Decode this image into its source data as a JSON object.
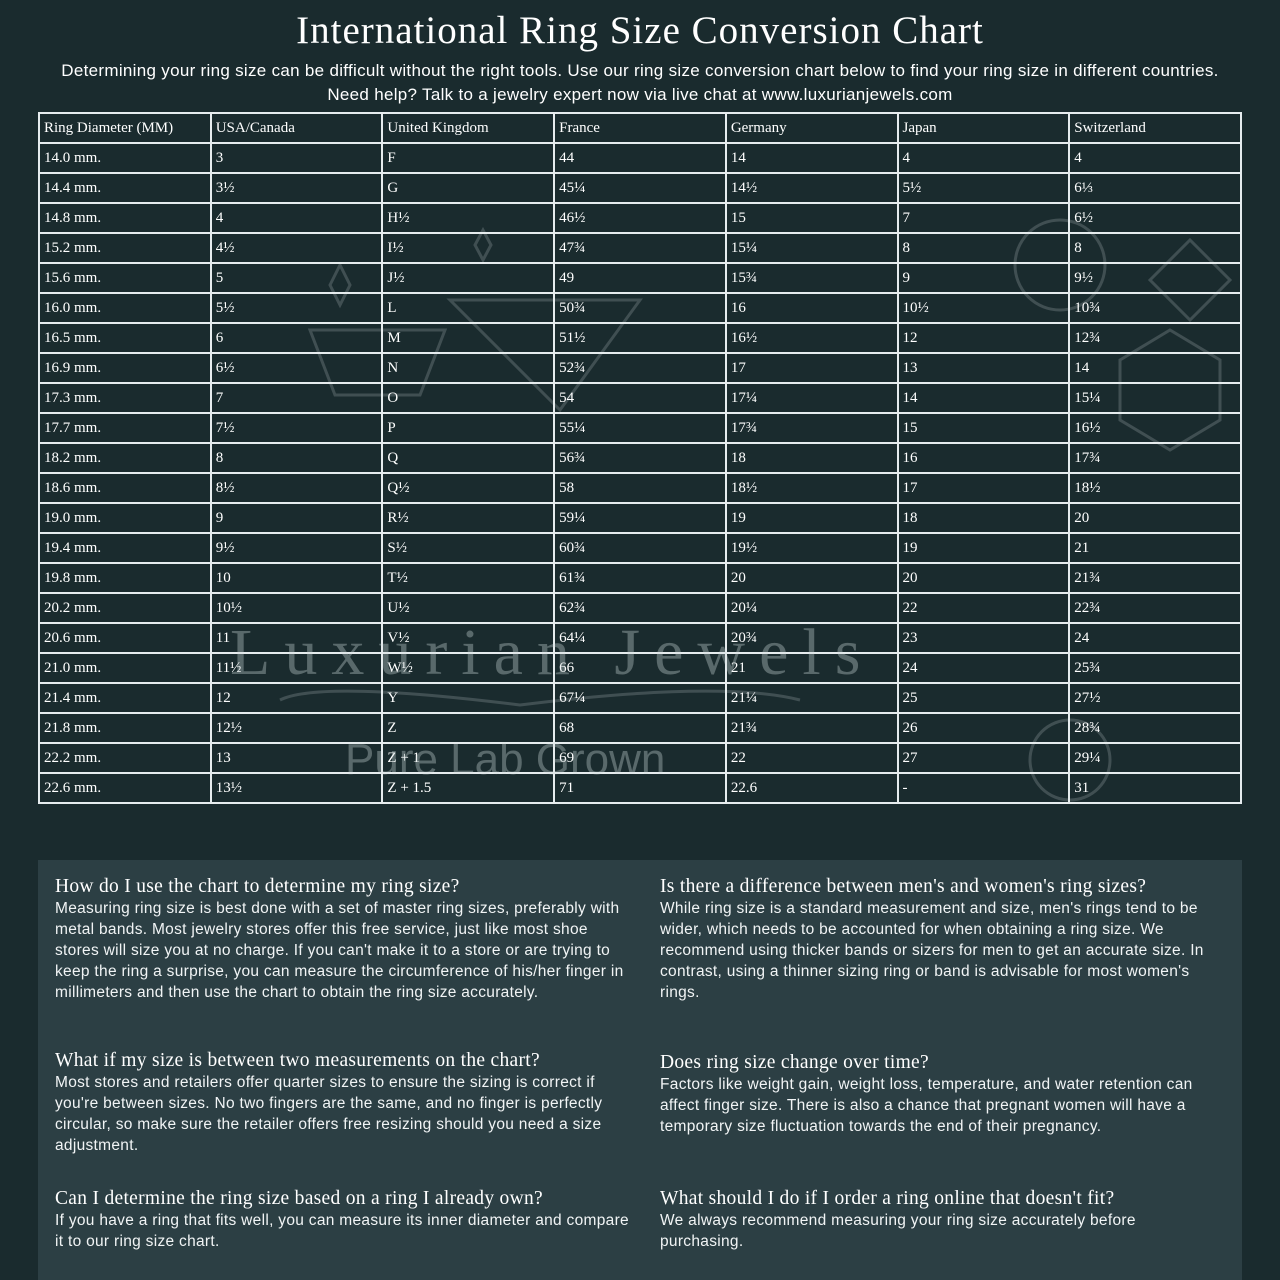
{
  "header": {
    "title": "International Ring Size Conversion Chart",
    "subtitle": "Determining your ring size can be difficult without the right tools. Use our ring size conversion chart below to find your ring size in different countries. Need help? Talk to a jewelry expert now via live chat at www.luxurianjewels.com"
  },
  "watermark": {
    "brand": "Luxurian Jewels",
    "tagline": "Pure Lab Grown"
  },
  "table": {
    "columns": [
      "Ring Diameter (MM)",
      "USA/Canada",
      "United Kingdom",
      "France",
      "Germany",
      "Japan",
      "Switzerland"
    ],
    "rows": [
      [
        "14.0 mm.",
        "3",
        "F",
        "44",
        "14",
        "4",
        "4"
      ],
      [
        "14.4 mm.",
        "3½",
        "G",
        "45¼",
        "14½",
        "5½",
        "6⅓"
      ],
      [
        "14.8 mm.",
        "4",
        "H½",
        "46½",
        "15",
        "7",
        "6½"
      ],
      [
        "15.2 mm.",
        "4½",
        "I½",
        "47¾",
        "15¼",
        "8",
        "8"
      ],
      [
        "15.6 mm.",
        "5",
        "J½",
        "49",
        "15¾",
        "9",
        "9½"
      ],
      [
        "16.0 mm.",
        "5½",
        "L",
        "50¾",
        "16",
        "10½",
        "10¾"
      ],
      [
        "16.5 mm.",
        "6",
        "M",
        "51½",
        "16½",
        "12",
        "12¾"
      ],
      [
        "16.9 mm.",
        "6½",
        "N",
        "52¾",
        "17",
        "13",
        "14"
      ],
      [
        "17.3 mm.",
        "7",
        "O",
        "54",
        "17¼",
        "14",
        "15¼"
      ],
      [
        "17.7 mm.",
        "7½",
        "P",
        "55¼",
        "17¾",
        "15",
        "16½"
      ],
      [
        "18.2 mm.",
        "8",
        "Q",
        "56¾",
        "18",
        "16",
        "17¾"
      ],
      [
        "18.6 mm.",
        "8½",
        "Q½",
        "58",
        "18½",
        "17",
        "18½"
      ],
      [
        "19.0 mm.",
        "9",
        "R½",
        "59¼",
        "19",
        "18",
        "20"
      ],
      [
        "19.4 mm.",
        "9½",
        "S½",
        "60¾",
        "19½",
        "19",
        "21"
      ],
      [
        "19.8 mm.",
        "10",
        "T½",
        "61¾",
        "20",
        "20",
        "21¾"
      ],
      [
        "20.2 mm.",
        "10½",
        "U½",
        "62¾",
        "20¼",
        "22",
        "22¾"
      ],
      [
        "20.6 mm.",
        "11",
        "V½",
        "64¼",
        "20¾",
        "23",
        "24"
      ],
      [
        "21.0 mm.",
        "11½",
        "W½",
        "66",
        "21",
        "24",
        "25¾"
      ],
      [
        "21.4 mm.",
        "12",
        "Y",
        "67¼",
        "21¼",
        "25",
        "27½"
      ],
      [
        "21.8 mm.",
        "12½",
        "Z",
        "68",
        "21¾",
        "26",
        "28¾"
      ],
      [
        "22.2 mm.",
        "13",
        "Z + 1",
        "69",
        "22",
        "27",
        "29¼"
      ],
      [
        "22.6 mm.",
        "13½",
        "Z + 1.5",
        "71",
        "22.6",
        "-",
        "31"
      ]
    ]
  },
  "faq": [
    {
      "question": "How do I use the chart to determine my ring size?",
      "answer": "Measuring ring size is best done with a set of master ring sizes, preferably with metal bands. Most jewelry stores offer this free service, just like most shoe stores will size you at no charge. If you can't make it to a store or are trying to keep the ring a surprise, you can measure the circumference of his/her finger in millimeters and then use the chart to obtain the ring size accurately."
    },
    {
      "question": "Is there a difference between men's and women's ring sizes?",
      "answer": "While ring size is a standard measurement and size, men's rings tend to be wider, which needs to be accounted for when obtaining a ring size. We recommend using thicker bands or sizers for men to get an accurate size. In contrast, using a thinner sizing ring or band is advisable for most women's rings."
    },
    {
      "question": "What if my size is between two measurements on the chart?",
      "answer": "Most stores and retailers offer quarter sizes to ensure the sizing is correct if you're between sizes. No two fingers are the same, and no finger is perfectly circular, so make sure the retailer offers free resizing should you need a size adjustment."
    },
    {
      "question": "Does ring size change over time?",
      "answer": "Factors like weight gain, weight loss, temperature, and water retention can affect finger size. There is also a chance that pregnant women will have a temporary size fluctuation towards the end of their pregnancy."
    },
    {
      "question": "Can I determine the ring size based on a ring I already own?",
      "answer": "If you have a ring that fits well, you can measure its inner diameter and compare it to our ring size chart."
    },
    {
      "question": "What should I do if I order a ring online that doesn't fit?",
      "answer": "We always recommend measuring your ring size accurately before purchasing."
    }
  ]
}
